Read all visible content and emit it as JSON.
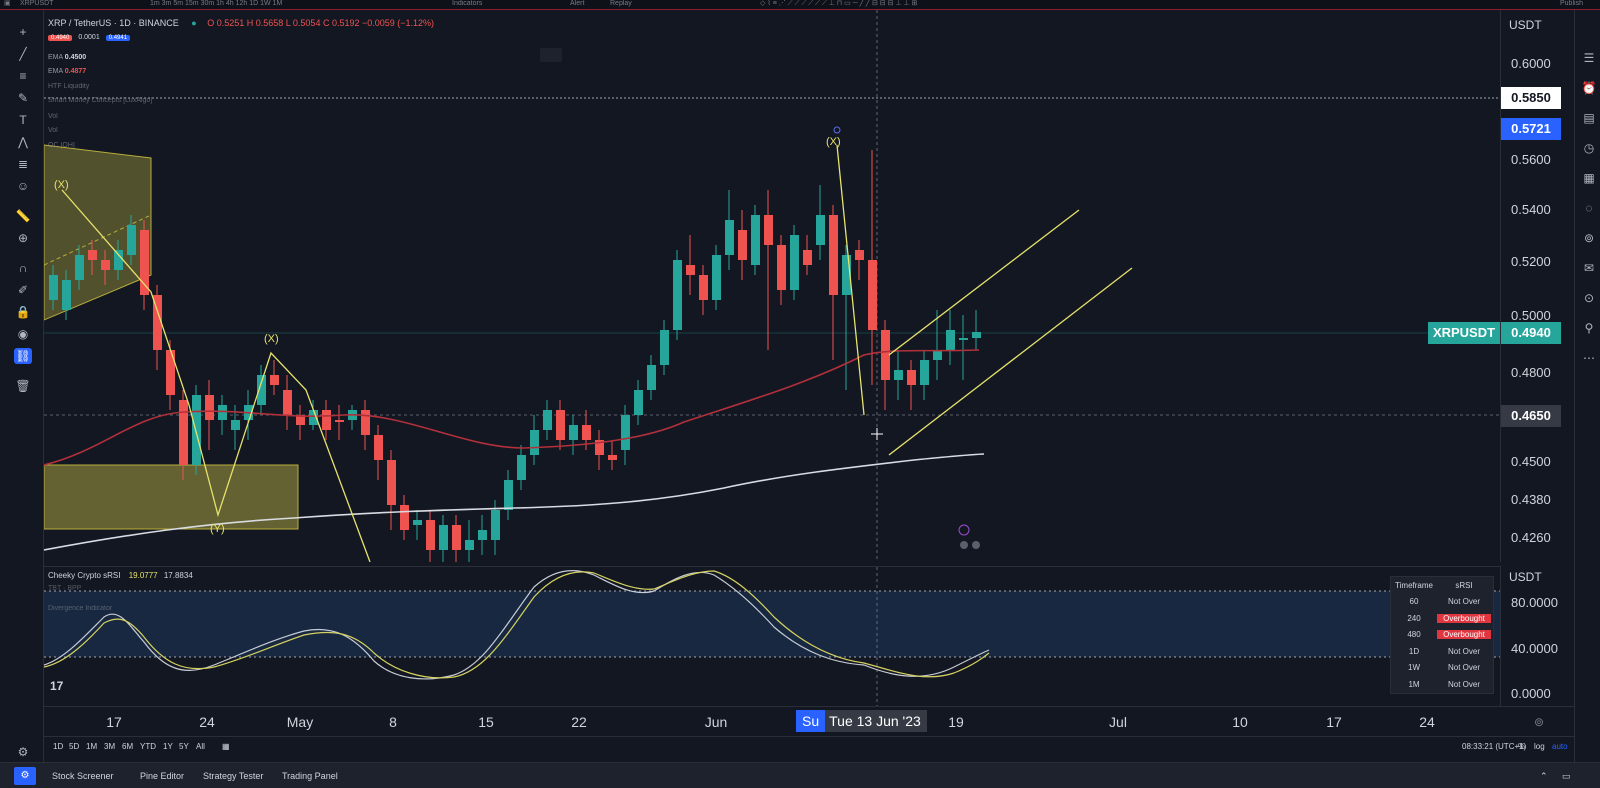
{
  "topbar": {
    "symbol": "XRPUSDT",
    "indicators_label": "Indicators",
    "alert_label": "Alert",
    "replay_label": "Replay",
    "publish_label": "Publish"
  },
  "chart_header": {
    "symbol_line": "XRP / TetherUS · 1D · BINANCE",
    "ohlc": "O 0.5251  H 0.5658  L 0.5054  C 0.5192  −0.0059 (−1.12%)",
    "bid": "0.4940",
    "spread": "0.0001",
    "ask": "0.4941"
  },
  "indicator_legend": [
    {
      "name": "EMA",
      "value": "0.4500"
    },
    {
      "name": "EMA",
      "value": "0.4877"
    },
    {
      "name": "HTF Liquidity",
      "value": ""
    },
    {
      "name": "Smart Money Concepts [LuxAlgo]",
      "value": ""
    },
    {
      "name": "Vol",
      "value": ""
    },
    {
      "name": "Vol",
      "value": ""
    },
    {
      "name": "OC [OH]",
      "value": ""
    }
  ],
  "price_axis": {
    "unit": "USDT",
    "ticks": [
      "0.6000",
      "0.5600",
      "0.5400",
      "0.5200",
      "0.5000",
      "0.4800",
      "0.4500",
      "0.4380",
      "0.4260"
    ],
    "tag_high": "0.5850",
    "tag_target": "0.5721",
    "tag_symbol": "XRPUSDT",
    "tag_last": "0.4940",
    "tag_cursor": "0.4650"
  },
  "wave_labels": [
    "(X)",
    "(X)",
    "(Y)",
    "(X)"
  ],
  "oscillator": {
    "title": "Cheeky Crypto sRSI",
    "v1": "19.0777",
    "v2": "17.8834",
    "sub1": "TBT · BPP",
    "sub2": "Divergence Indicator",
    "unit": "USDT",
    "ticks": [
      "80.0000",
      "40.0000",
      "0.0000"
    ]
  },
  "srsi_table": {
    "header": [
      "Timeframe",
      "sRSI"
    ],
    "rows": [
      {
        "tf": "60",
        "status": "Not Over",
        "over": false
      },
      {
        "tf": "240",
        "status": "Overbought",
        "over": true
      },
      {
        "tf": "480",
        "status": "Overbought",
        "over": true
      },
      {
        "tf": "1D",
        "status": "Not Over",
        "over": false
      },
      {
        "tf": "1W",
        "status": "Not Over",
        "over": false
      },
      {
        "tf": "1M",
        "status": "Not Over",
        "over": false
      }
    ]
  },
  "time_axis": {
    "labels": [
      "17",
      "24",
      "May",
      "8",
      "15",
      "22",
      "Jun",
      "19",
      "Jul",
      "10",
      "17",
      "24"
    ],
    "cursor_day": "Su",
    "cursor_date": "Tue 13 Jun '23"
  },
  "ranges": [
    "1D",
    "5D",
    "1M",
    "3M",
    "6M",
    "YTD",
    "1Y",
    "5Y",
    "All"
  ],
  "status": {
    "clock": "08:33:21 (UTC+1)",
    "percent": "%",
    "log": "log",
    "auto": "auto"
  },
  "bottom_tabs": [
    "Stock Screener",
    "Pine Editor",
    "Strategy Tester",
    "Trading Panel"
  ],
  "colors": {
    "bg": "#131722",
    "up": "#26a69a",
    "down": "#ef5350",
    "ema_red": "#b2303a",
    "ema_white": "#d1d4dc",
    "wave": "#e6e26b",
    "accent": "#2962ff"
  }
}
